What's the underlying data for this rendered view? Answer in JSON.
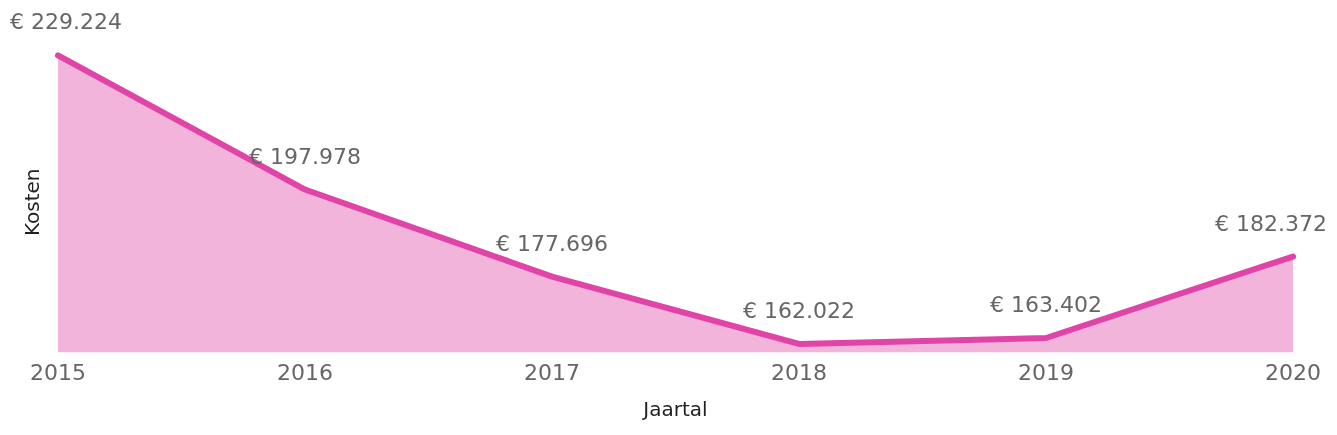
{
  "chart_data": {
    "type": "area",
    "xlabel": "Jaartal",
    "ylabel": "Kosten",
    "categories": [
      "2015",
      "2016",
      "2017",
      "2018",
      "2019",
      "2020"
    ],
    "series": [
      {
        "color": "#e044a7",
        "values": [
          229224,
          197978,
          177696,
          162022,
          163402,
          182372
        ],
        "value_labels": [
          "€ 229.224",
          "€ 197.978",
          "€ 177.696",
          "€ 162.022",
          "€ 163.402",
          "€ 182.372"
        ]
      }
    ],
    "grid": false,
    "legend": false,
    "marker": "none",
    "line_style": "solid"
  }
}
